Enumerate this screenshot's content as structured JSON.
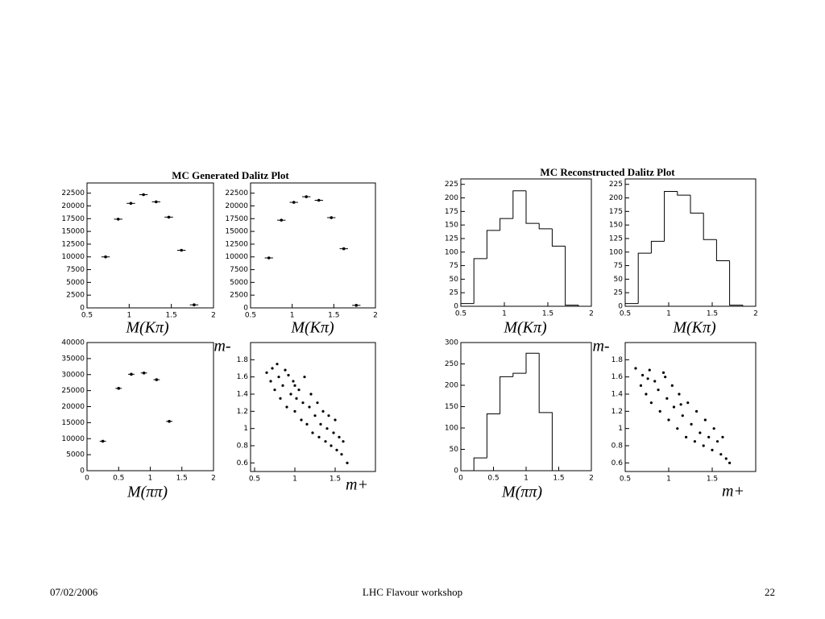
{
  "chart_data": [
    {
      "type": "errorbar",
      "title": "MC Generated Dalitz Plot",
      "x_label": "M(Kπ)",
      "x": [
        0.72,
        0.87,
        1.02,
        1.17,
        1.32,
        1.47,
        1.62,
        1.77
      ],
      "values": [
        10000,
        17400,
        20500,
        22200,
        20800,
        17800,
        11300,
        600
      ],
      "xerr": 0.05,
      "xlim": [
        0.5,
        2
      ],
      "xticks": [
        0.5,
        1,
        1.5,
        2
      ],
      "ylim": [
        0,
        24500
      ],
      "yticks": [
        0,
        2500,
        5000,
        7500,
        10000,
        12500,
        15000,
        17500,
        20000,
        22500
      ],
      "color": "#000000"
    },
    {
      "type": "errorbar",
      "x_label": "M(Kπ)",
      "x": [
        0.72,
        0.87,
        1.02,
        1.17,
        1.32,
        1.47,
        1.62,
        1.77
      ],
      "values": [
        9800,
        17200,
        20700,
        21800,
        21100,
        17700,
        11600,
        500
      ],
      "xerr": 0.05,
      "xlim": [
        0.5,
        2
      ],
      "xticks": [
        0.5,
        1,
        1.5,
        2
      ],
      "ylim": [
        0,
        24500
      ],
      "yticks": [
        0,
        2500,
        5000,
        7500,
        10000,
        12500,
        15000,
        17500,
        20000,
        22500
      ],
      "color": "#000000"
    },
    {
      "type": "errorbar",
      "x_label": "M(ππ)",
      "x": [
        0.25,
        0.5,
        0.7,
        0.9,
        1.1,
        1.3
      ],
      "values": [
        9200,
        25700,
        30100,
        30500,
        28400,
        15400
      ],
      "xerr": 0.05,
      "xlim": [
        0,
        2
      ],
      "xticks": [
        0,
        0.5,
        1,
        1.5,
        2
      ],
      "ylim": [
        0,
        40000
      ],
      "yticks": [
        0,
        5000,
        10000,
        15000,
        20000,
        25000,
        30000,
        35000,
        40000
      ],
      "color": "#000000"
    },
    {
      "type": "scatter",
      "x_label": "m+",
      "y_label": "m-",
      "x": [
        0.65,
        0.7,
        0.72,
        0.75,
        0.8,
        0.82,
        0.85,
        0.88,
        0.9,
        0.95,
        0.98,
        1.0,
        1.02,
        1.05,
        1.08,
        1.1,
        1.12,
        1.15,
        1.18,
        1.2,
        1.22,
        1.25,
        1.28,
        1.3,
        1.32,
        1.35,
        1.38,
        1.4,
        1.42,
        1.45,
        1.48,
        1.5,
        1.52,
        1.55,
        1.58,
        1.6,
        1.65,
        0.78,
        0.92,
        1.0
      ],
      "values": [
        1.65,
        1.55,
        1.7,
        1.45,
        1.6,
        1.35,
        1.5,
        1.68,
        1.25,
        1.4,
        1.55,
        1.2,
        1.35,
        1.45,
        1.1,
        1.3,
        1.6,
        1.05,
        1.25,
        1.4,
        0.95,
        1.15,
        1.3,
        0.9,
        1.05,
        1.2,
        0.85,
        1.0,
        1.15,
        0.8,
        0.95,
        1.1,
        0.75,
        0.9,
        0.7,
        0.85,
        0.6,
        1.75,
        1.62,
        1.5
      ],
      "xlim": [
        0.45,
        2
      ],
      "xticks": [
        0.5,
        1,
        1.5
      ],
      "ylim": [
        0.5,
        2
      ],
      "yticks": [
        0.6,
        0.8,
        1,
        1.2,
        1.4,
        1.6,
        1.8
      ],
      "color": "#000000"
    },
    {
      "type": "histogram",
      "title": "MC Reconstructed Dalitz Plot",
      "x_label": "M(Kπ)",
      "bins": [
        0.5,
        0.65,
        0.8,
        0.95,
        1.1,
        1.25,
        1.4,
        1.55,
        1.7,
        1.85
      ],
      "values": [
        5,
        88,
        140,
        162,
        213,
        153,
        143,
        111,
        2
      ],
      "xlim": [
        0.5,
        2
      ],
      "xticks": [
        0.5,
        1,
        1.5,
        2
      ],
      "ylim": [
        0,
        235
      ],
      "yticks": [
        0,
        25,
        50,
        75,
        100,
        125,
        150,
        175,
        200,
        225
      ],
      "color": "#000000"
    },
    {
      "type": "histogram",
      "x_label": "M(Kπ)",
      "bins": [
        0.5,
        0.65,
        0.8,
        0.95,
        1.1,
        1.25,
        1.4,
        1.55,
        1.7,
        1.85
      ],
      "values": [
        5,
        98,
        120,
        212,
        205,
        172,
        123,
        84,
        2
      ],
      "xlim": [
        0.5,
        2
      ],
      "xticks": [
        0.5,
        1,
        1.5,
        2
      ],
      "ylim": [
        0,
        235
      ],
      "yticks": [
        0,
        25,
        50,
        75,
        100,
        125,
        150,
        175,
        200,
        225
      ],
      "color": "#000000"
    },
    {
      "type": "histogram",
      "x_label": "M(ππ)",
      "bins": [
        0.2,
        0.4,
        0.6,
        0.8,
        1.0,
        1.2,
        1.4
      ],
      "values": [
        30,
        133,
        220,
        228,
        275,
        136
      ],
      "xlim": [
        0,
        2
      ],
      "xticks": [
        0,
        0.5,
        1,
        1.5,
        2
      ],
      "ylim": [
        0,
        300
      ],
      "yticks": [
        0,
        50,
        100,
        150,
        200,
        250,
        300
      ],
      "color": "#000000"
    },
    {
      "type": "scatter",
      "x_label": "m+",
      "y_label": "m-",
      "x": [
        0.62,
        0.68,
        0.7,
        0.74,
        0.78,
        0.8,
        0.84,
        0.88,
        0.9,
        0.94,
        0.98,
        1.0,
        1.04,
        1.06,
        1.1,
        1.12,
        1.16,
        1.2,
        1.22,
        1.26,
        1.3,
        1.32,
        1.36,
        1.4,
        1.42,
        1.46,
        1.5,
        1.52,
        1.56,
        1.6,
        1.62,
        1.66,
        1.7,
        0.76,
        0.96,
        1.14
      ],
      "values": [
        1.7,
        1.5,
        1.62,
        1.4,
        1.68,
        1.3,
        1.55,
        1.45,
        1.2,
        1.65,
        1.35,
        1.1,
        1.5,
        1.25,
        1.0,
        1.4,
        1.15,
        0.9,
        1.3,
        1.05,
        0.85,
        1.2,
        0.95,
        0.8,
        1.1,
        0.9,
        0.75,
        1.0,
        0.85,
        0.7,
        0.9,
        0.65,
        0.6,
        1.58,
        1.6,
        1.28
      ],
      "xlim": [
        0.5,
        2
      ],
      "xticks": [
        0.5,
        1,
        1.5
      ],
      "ylim": [
        0.5,
        2
      ],
      "yticks": [
        0.6,
        0.8,
        1,
        1.2,
        1.4,
        1.6,
        1.8
      ],
      "color": "#000000"
    }
  ],
  "footer": {
    "date": "07/02/2006",
    "event": "LHC Flavour workshop",
    "page": "22"
  }
}
